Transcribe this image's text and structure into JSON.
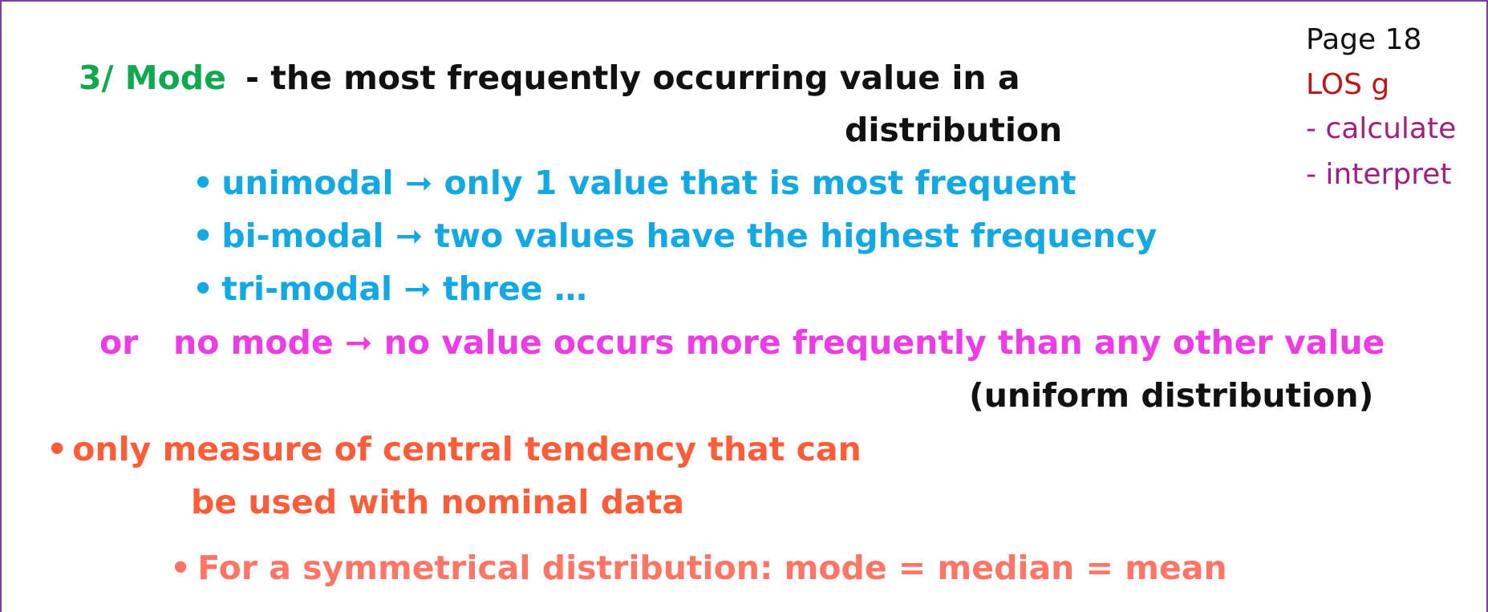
{
  "colors": {
    "green": "#11a84f",
    "black": "#111111",
    "cyan": "#14a8e3",
    "magenta": "#ec3ce4",
    "orange": "#ff5c3a",
    "salmon": "#ff7566",
    "red": "#c0151b",
    "purple": "#a0207f",
    "border": "#7a3fa0"
  },
  "heading": {
    "label": "3/ Mode",
    "definition_line1": "- the most frequently occurring value in a",
    "definition_line2": "distribution"
  },
  "modal_types": [
    {
      "bullet": "•",
      "text": "unimodal ➞ only 1 value that is most frequent"
    },
    {
      "bullet": "•",
      "text": "bi-modal ➞ two values have the highest frequency"
    },
    {
      "bullet": "•",
      "text": "tri-modal ➞ three …"
    }
  ],
  "no_mode": {
    "prefix": "or",
    "text": "no mode ➞ no value occurs more frequently than any other value",
    "note": "(uniform distribution)"
  },
  "nominal": {
    "bullet": "•",
    "line1": "only measure of central tendency that can",
    "line2": "be used with nominal data"
  },
  "symmetry": {
    "bullet": "•",
    "text": "For a symmetrical distribution: mode = median = mean"
  },
  "sidebar": {
    "page": "Page 18",
    "los": "LOS g",
    "items": [
      "- calculate",
      "- interpret"
    ]
  }
}
